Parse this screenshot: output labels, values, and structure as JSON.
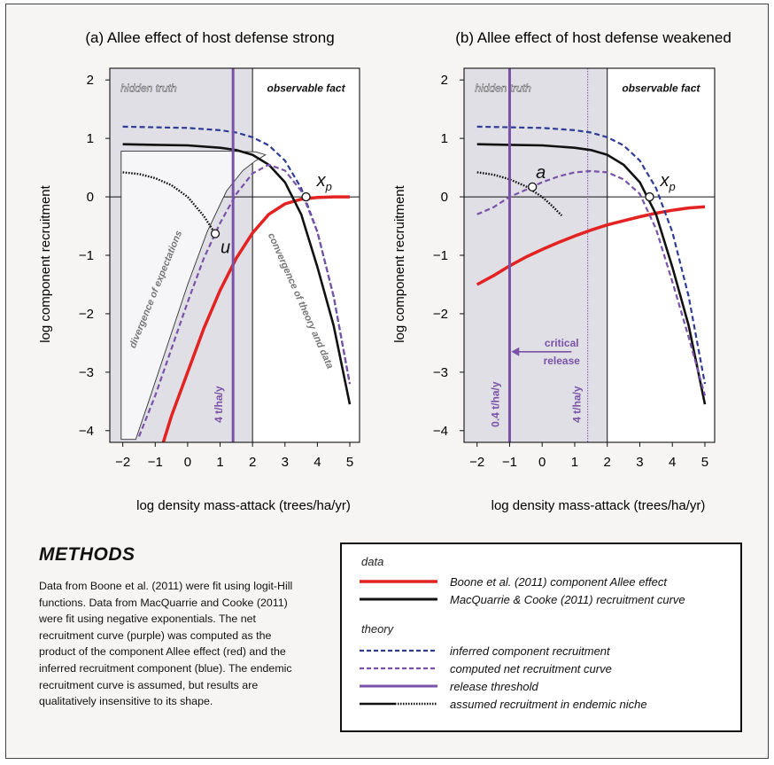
{
  "colors": {
    "red": "#e32222",
    "black": "#111111",
    "blue": "#2e3c96",
    "purple": "#7a52a8",
    "grey": "#888888",
    "shade": "#e0dfe6"
  },
  "chart_data": [
    {
      "type": "line",
      "title": "(a) Allee effect of host defense strong",
      "xlabel": "log density mass-attack (trees/ha/yr)",
      "ylabel": "log component recruitment",
      "xlim": [
        -2.4,
        5.3
      ],
      "ylim": [
        -4.2,
        2.2
      ],
      "x_ticks": [
        "−2",
        "−1",
        "0",
        "1",
        "2",
        "3",
        "4",
        "5"
      ],
      "y_ticks": [
        "2",
        "1",
        "0",
        "−1",
        "−2",
        "−3",
        "−4"
      ],
      "shaded_region_x": [
        -2.4,
        2
      ],
      "region_labels": [
        "hidden truth",
        "observable fact"
      ],
      "threshold_x": 1.4,
      "threshold_label": "4 t/ha/y",
      "points": [
        {
          "label": "u",
          "x": 0.85,
          "y": -0.63
        },
        {
          "label": "x",
          "subscript": "p",
          "x": 3.65,
          "y": 0
        }
      ],
      "annotations": [
        "divergence of expectations",
        "convergence of theory and data"
      ],
      "series": [
        {
          "name": "Boone et al. (2011) component Allee effect",
          "color": "red",
          "style": "solid",
          "x": [
            -0.75,
            -0.5,
            0,
            0.5,
            1,
            1.5,
            2,
            2.5,
            3,
            3.5,
            4,
            4.5,
            5
          ],
          "y": [
            -4.2,
            -3.75,
            -3.0,
            -2.25,
            -1.6,
            -1.05,
            -0.62,
            -0.3,
            -0.12,
            -0.04,
            -0.01,
            0.0,
            0.0
          ]
        },
        {
          "name": "MacQuarrie & Cooke (2011) recruitment curve",
          "color": "black",
          "style": "solid",
          "x": [
            -2,
            -1,
            0,
            1,
            1.5,
            2,
            2.5,
            3,
            3.5,
            4,
            4.5,
            5
          ],
          "y": [
            0.9,
            0.89,
            0.88,
            0.84,
            0.8,
            0.72,
            0.55,
            0.25,
            -0.3,
            -1.2,
            -2.2,
            -3.55
          ]
        },
        {
          "name": "inferred component recruitment",
          "color": "blue",
          "style": "dashed",
          "x": [
            -2,
            -1,
            0,
            1,
            1.5,
            2,
            2.5,
            3,
            3.5,
            4,
            4.5,
            5
          ],
          "y": [
            1.2,
            1.19,
            1.18,
            1.14,
            1.1,
            1.02,
            0.88,
            0.62,
            0.15,
            -0.6,
            -1.7,
            -3.2
          ]
        },
        {
          "name": "computed net recruitment curve",
          "color": "purple",
          "style": "dashed",
          "x": [
            -1.5,
            -1,
            -0.5,
            0,
            0.5,
            1,
            1.5,
            2,
            2.5,
            3,
            3.5,
            4,
            4.5,
            5
          ],
          "y": [
            -4.1,
            -3.4,
            -2.6,
            -1.8,
            -1.05,
            -0.45,
            0.05,
            0.4,
            0.55,
            0.45,
            0.1,
            -0.6,
            -1.7,
            -3.2
          ]
        },
        {
          "name": "assumed recruitment in endemic niche",
          "color": "black",
          "style": "dotted",
          "x": [
            -2,
            -1.5,
            -1,
            -0.5,
            0,
            0.5,
            0.85
          ],
          "y": [
            0.42,
            0.39,
            0.32,
            0.2,
            0.0,
            -0.33,
            -0.63
          ]
        }
      ]
    },
    {
      "type": "line",
      "title": "(b) Allee effect of host defense weakened",
      "xlabel": "log density mass-attack (trees/ha/yr)",
      "ylabel": "log component recruitment",
      "xlim": [
        -2.4,
        5.3
      ],
      "ylim": [
        -4.2,
        2.2
      ],
      "x_ticks": [
        "−2",
        "−1",
        "0",
        "1",
        "2",
        "3",
        "4",
        "5"
      ],
      "y_ticks": [
        "2",
        "1",
        "0",
        "−1",
        "−2",
        "−3",
        "−4"
      ],
      "shaded_region_x": [
        -2.4,
        2
      ],
      "region_labels": [
        "hidden truth",
        "observable fact"
      ],
      "threshold_x": -1.0,
      "threshold_label": "0.4 t/ha/y",
      "old_threshold_x": 1.4,
      "old_threshold_label": "4 t/ha/y",
      "release_label": [
        "critical",
        "release"
      ],
      "points": [
        {
          "label": "a",
          "x": -0.3,
          "y": 0.17
        },
        {
          "label": "x",
          "subscript": "p",
          "x": 3.3,
          "y": 0
        }
      ],
      "series": [
        {
          "name": "Boone et al. (2011) component Allee effect",
          "color": "red",
          "style": "solid",
          "x": [
            -2,
            -1.5,
            -1,
            -0.5,
            0,
            0.5,
            1,
            1.5,
            2,
            2.5,
            3,
            3.5,
            4,
            4.5,
            5
          ],
          "y": [
            -1.5,
            -1.35,
            -1.18,
            -1.03,
            -0.9,
            -0.78,
            -0.67,
            -0.57,
            -0.48,
            -0.41,
            -0.34,
            -0.28,
            -0.23,
            -0.19,
            -0.17
          ]
        },
        {
          "name": "MacQuarrie & Cooke (2011) recruitment curve",
          "color": "black",
          "style": "solid",
          "x": [
            -2,
            -1,
            0,
            1,
            1.5,
            2,
            2.5,
            3,
            3.5,
            4,
            4.5,
            5
          ],
          "y": [
            0.9,
            0.89,
            0.88,
            0.84,
            0.8,
            0.72,
            0.55,
            0.25,
            -0.3,
            -1.2,
            -2.2,
            -3.55
          ]
        },
        {
          "name": "inferred component recruitment",
          "color": "blue",
          "style": "dashed",
          "x": [
            -2,
            -1,
            0,
            1,
            1.5,
            2,
            2.5,
            3,
            3.5,
            4,
            4.5,
            5
          ],
          "y": [
            1.2,
            1.19,
            1.18,
            1.14,
            1.1,
            1.02,
            0.88,
            0.62,
            0.15,
            -0.6,
            -1.7,
            -3.2
          ]
        },
        {
          "name": "computed net recruitment curve",
          "color": "purple",
          "style": "dashed",
          "x": [
            -2,
            -1.5,
            -1,
            -0.5,
            0,
            0.5,
            1,
            1.5,
            2,
            2.5,
            3,
            3.5,
            4,
            4.5,
            5
          ],
          "y": [
            -0.3,
            -0.18,
            0.0,
            0.12,
            0.25,
            0.35,
            0.42,
            0.44,
            0.42,
            0.3,
            0.05,
            -0.55,
            -1.45,
            -2.4,
            -3.4
          ]
        },
        {
          "name": "assumed recruitment in endemic niche",
          "color": "black",
          "style": "dotted",
          "x": [
            -2,
            -1.5,
            -1,
            -0.5,
            0,
            0.3,
            0.6
          ],
          "y": [
            0.42,
            0.38,
            0.3,
            0.18,
            0.0,
            -0.15,
            -0.32
          ]
        }
      ]
    }
  ],
  "methods": {
    "title": "METHODS",
    "text": "Data from Boone et al. (2011) were fit using logit-Hill functions.  Data from MacQuarrie and Cooke (2011) were fit using negative exponentials.  The net recruitment curve (purple) was computed as the product of the component Allee effect (red) and the inferred recruitment component (blue). The endemic recruitment curve is assumed, but results are qualitatively insensitive to its shape."
  },
  "legend": {
    "data_heading": "data",
    "theory_heading": "theory",
    "data_items": [
      {
        "label": "Boone et al. (2011) component Allee effect",
        "color": "red",
        "style": "solid"
      },
      {
        "label": "MacQuarrie & Cooke (2011) recruitment curve",
        "color": "black",
        "style": "solid"
      }
    ],
    "theory_items": [
      {
        "label": "inferred component recruitment",
        "color": "blue",
        "style": "dashed"
      },
      {
        "label": "computed net recruitment curve",
        "color": "purple",
        "style": "dashed"
      },
      {
        "label": "release threshold",
        "color": "purple",
        "style": "solid"
      },
      {
        "label": "assumed recruitment in endemic niche",
        "color": "black",
        "style": "solid-dotted"
      }
    ]
  }
}
